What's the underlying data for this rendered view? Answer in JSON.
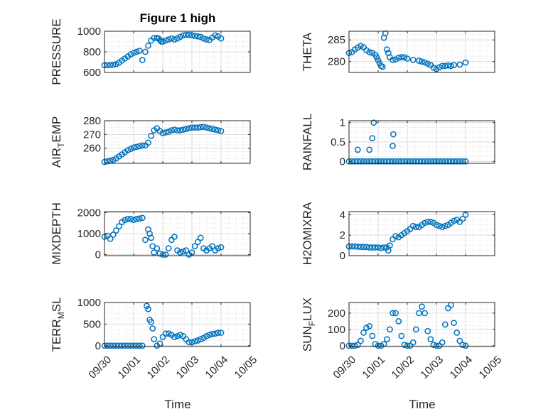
{
  "figure": {
    "title": "Figure 1 high",
    "xlabel": "Time",
    "marker_color": "#0072BD",
    "grid_color": "#DCDCDC",
    "axis_color": "#262626",
    "x_tick_labels": [
      "09/30",
      "10/01",
      "10/02",
      "10/03",
      "10/04",
      "10/05"
    ]
  },
  "chart_data": [
    {
      "type": "scatter",
      "ylabel": "PRESSURE",
      "xlim": [
        0,
        5
      ],
      "ylim": [
        600,
        1000
      ],
      "yticks": [
        600,
        800,
        1000
      ],
      "x_tick_labels_visible": false,
      "grid": true,
      "x": [
        0.0,
        0.1,
        0.2,
        0.3,
        0.4,
        0.5,
        0.6,
        0.7,
        0.8,
        0.9,
        1.0,
        1.1,
        1.2,
        1.3,
        1.4,
        1.5,
        1.6,
        1.7,
        1.8,
        1.85,
        1.9,
        1.95,
        2.0,
        2.1,
        2.2,
        2.3,
        2.4,
        2.5,
        2.6,
        2.7,
        2.8,
        2.9,
        3.0,
        3.1,
        3.2,
        3.3,
        3.4,
        3.5,
        3.6,
        3.7,
        3.8,
        3.9,
        4.0
      ],
      "y": [
        670,
        670,
        672,
        675,
        680,
        695,
        715,
        735,
        755,
        775,
        790,
        800,
        810,
        720,
        800,
        860,
        910,
        935,
        935,
        930,
        915,
        900,
        900,
        910,
        920,
        930,
        920,
        930,
        945,
        960,
        965,
        965,
        960,
        955,
        950,
        945,
        930,
        920,
        915,
        940,
        960,
        950,
        930
      ]
    },
    {
      "type": "scatter",
      "ylabel": "THETA",
      "xlim": [
        0,
        5
      ],
      "ylim": [
        277.5,
        287
      ],
      "yticks": [
        280,
        285
      ],
      "x_tick_labels_visible": false,
      "grid": true,
      "x": [
        0.0,
        0.1,
        0.2,
        0.3,
        0.4,
        0.5,
        0.6,
        0.7,
        0.8,
        0.9,
        0.95,
        1.0,
        1.05,
        1.1,
        1.15,
        1.2,
        1.25,
        1.3,
        1.35,
        1.4,
        1.5,
        1.6,
        1.7,
        1.8,
        1.9,
        2.0,
        2.2,
        2.4,
        2.5,
        2.6,
        2.7,
        2.8,
        2.9,
        3.0,
        3.1,
        3.2,
        3.3,
        3.4,
        3.5,
        3.6,
        3.8,
        4.0
      ],
      "y": [
        282,
        282.2,
        282.8,
        283.2,
        283.6,
        283.3,
        282.6,
        282.2,
        282,
        281.6,
        281,
        280.3,
        279.6,
        279,
        278.8,
        285.5,
        286.5,
        282.8,
        282,
        281,
        280.4,
        280.5,
        280.9,
        281,
        281,
        280.7,
        280.4,
        280.2,
        280,
        279.8,
        279.5,
        279.2,
        278.6,
        278.3,
        278.7,
        279,
        279,
        279.1,
        279,
        279.2,
        279.3,
        279.8
      ]
    },
    {
      "type": "scatter",
      "ylabel": "AIR_TEMP",
      "xlim": [
        0,
        5
      ],
      "ylim": [
        249,
        280
      ],
      "yticks": [
        260,
        270,
        280
      ],
      "x_tick_labels_visible": false,
      "grid": true,
      "x": [
        0.0,
        0.1,
        0.2,
        0.3,
        0.4,
        0.5,
        0.6,
        0.7,
        0.8,
        0.9,
        1.0,
        1.1,
        1.2,
        1.3,
        1.4,
        1.5,
        1.6,
        1.7,
        1.8,
        1.9,
        2.0,
        2.1,
        2.2,
        2.3,
        2.4,
        2.5,
        2.6,
        2.7,
        2.8,
        2.9,
        3.0,
        3.1,
        3.2,
        3.3,
        3.4,
        3.5,
        3.6,
        3.7,
        3.8,
        3.9,
        4.0
      ],
      "y": [
        250,
        250.5,
        251,
        251.5,
        252.5,
        254,
        255.5,
        257,
        258.5,
        259.5,
        260.5,
        261,
        261.5,
        262,
        262,
        264,
        269,
        273,
        274.5,
        272.5,
        271,
        271.5,
        272,
        273,
        273.5,
        273,
        273,
        273.5,
        274,
        274.5,
        275,
        275,
        275,
        275.3,
        275.5,
        275,
        274.5,
        274,
        273.5,
        273,
        272.5
      ]
    },
    {
      "type": "scatter",
      "ylabel": "RAINFALL",
      "xlim": [
        0,
        5
      ],
      "ylim": [
        -0.05,
        1.05
      ],
      "yticks": [
        0,
        0.5,
        1
      ],
      "x_tick_labels_visible": false,
      "grid": true,
      "x": [
        0.0,
        0.1,
        0.2,
        0.3,
        0.4,
        0.5,
        0.6,
        0.7,
        0.8,
        0.9,
        1.0,
        1.1,
        1.2,
        1.3,
        1.4,
        1.5,
        1.6,
        1.7,
        1.8,
        1.9,
        2.0,
        2.1,
        2.2,
        2.3,
        2.4,
        2.5,
        2.6,
        2.7,
        2.8,
        2.9,
        3.0,
        3.1,
        3.2,
        3.3,
        3.4,
        3.5,
        3.6,
        3.7,
        3.8,
        3.9,
        4.0,
        0.3,
        0.7,
        0.8,
        0.85,
        1.5,
        1.52
      ],
      "y": [
        0,
        0,
        0,
        0,
        0,
        0,
        0,
        0,
        0,
        0,
        0,
        0,
        0,
        0,
        0,
        0,
        0,
        0,
        0,
        0,
        0,
        0,
        0,
        0,
        0,
        0,
        0,
        0,
        0,
        0,
        0,
        0,
        0,
        0,
        0,
        0,
        0,
        0,
        0,
        0,
        0,
        0.3,
        0.3,
        0.6,
        1.0,
        0.4,
        0.7
      ]
    },
    {
      "type": "scatter",
      "ylabel": "MIXDEPTH",
      "xlim": [
        0,
        5
      ],
      "ylim": [
        -50,
        2050
      ],
      "yticks": [
        0,
        1000,
        2000
      ],
      "x_tick_labels_visible": false,
      "grid": true,
      "x": [
        0.0,
        0.1,
        0.2,
        0.3,
        0.4,
        0.5,
        0.6,
        0.7,
        0.8,
        0.9,
        1.0,
        1.1,
        1.2,
        1.3,
        1.4,
        1.5,
        1.55,
        1.6,
        1.65,
        1.7,
        1.8,
        1.9,
        2.0,
        2.1,
        2.2,
        2.3,
        2.4,
        2.5,
        2.6,
        2.7,
        2.8,
        2.9,
        3.0,
        3.1,
        3.2,
        3.3,
        3.4,
        3.5,
        3.6,
        3.7,
        3.8,
        3.9,
        4.0
      ],
      "y": [
        850,
        900,
        750,
        950,
        1150,
        1350,
        1550,
        1650,
        1700,
        1700,
        1650,
        1700,
        1720,
        1750,
        700,
        1200,
        1000,
        800,
        400,
        100,
        300,
        50,
        0,
        0,
        300,
        700,
        850,
        200,
        100,
        150,
        200,
        0,
        100,
        400,
        600,
        800,
        300,
        200,
        300,
        400,
        200,
        300,
        350
      ]
    },
    {
      "type": "scatter",
      "ylabel": "H2OMIXRA",
      "xlim": [
        0,
        5
      ],
      "ylim": [
        0,
        4.3
      ],
      "yticks": [
        0,
        2,
        4
      ],
      "x_tick_labels_visible": false,
      "grid": true,
      "x": [
        0.0,
        0.1,
        0.2,
        0.3,
        0.4,
        0.5,
        0.6,
        0.7,
        0.8,
        0.9,
        1.0,
        1.1,
        1.2,
        1.3,
        1.35,
        1.4,
        1.5,
        1.6,
        1.7,
        1.8,
        1.9,
        2.0,
        2.1,
        2.2,
        2.3,
        2.4,
        2.5,
        2.6,
        2.7,
        2.8,
        2.9,
        3.0,
        3.1,
        3.2,
        3.3,
        3.4,
        3.5,
        3.6,
        3.7,
        3.8,
        3.9,
        4.0
      ],
      "y": [
        0.9,
        0.9,
        0.9,
        0.88,
        0.85,
        0.85,
        0.85,
        0.8,
        0.8,
        0.8,
        0.8,
        0.75,
        0.8,
        0.8,
        0.5,
        1.0,
        1.6,
        1.9,
        1.8,
        2.0,
        2.2,
        2.4,
        2.6,
        2.9,
        2.8,
        2.8,
        3.0,
        3.2,
        3.3,
        3.3,
        3.2,
        3.0,
        2.9,
        2.8,
        2.9,
        3.0,
        3.2,
        3.4,
        3.5,
        3.3,
        3.6,
        4.0
      ]
    },
    {
      "type": "scatter",
      "ylabel": "TERR_MSL",
      "xlim": [
        0,
        5
      ],
      "ylim": [
        -20,
        1000
      ],
      "yticks": [
        0,
        500,
        1000
      ],
      "x_tick_labels_visible": true,
      "grid": true,
      "x": [
        0.0,
        0.1,
        0.2,
        0.3,
        0.4,
        0.5,
        0.6,
        0.7,
        0.8,
        0.9,
        1.0,
        1.1,
        1.2,
        1.3,
        1.45,
        1.5,
        1.55,
        1.6,
        1.65,
        1.7,
        1.8,
        1.9,
        2.0,
        2.1,
        2.2,
        2.3,
        2.4,
        2.5,
        2.6,
        2.7,
        2.8,
        2.9,
        3.0,
        3.1,
        3.2,
        3.3,
        3.4,
        3.5,
        3.6,
        3.7,
        3.8,
        3.9,
        4.0
      ],
      "y": [
        0,
        0,
        0,
        0,
        0,
        0,
        0,
        0,
        0,
        0,
        0,
        0,
        0,
        0,
        920,
        850,
        600,
        550,
        400,
        150,
        0,
        50,
        200,
        280,
        280,
        250,
        200,
        220,
        250,
        220,
        150,
        80,
        80,
        100,
        120,
        150,
        180,
        220,
        250,
        270,
        280,
        300,
        300
      ]
    },
    {
      "type": "scatter",
      "ylabel": "SUN_FLUX",
      "xlim": [
        0,
        5
      ],
      "ylim": [
        -5,
        265
      ],
      "yticks": [
        0,
        100,
        200
      ],
      "x_tick_labels_visible": true,
      "grid": true,
      "x": [
        0.0,
        0.1,
        0.2,
        0.3,
        0.4,
        0.5,
        0.6,
        0.7,
        0.8,
        0.9,
        1.0,
        1.1,
        1.2,
        1.3,
        1.4,
        1.5,
        1.6,
        1.7,
        1.8,
        1.9,
        2.0,
        2.1,
        2.2,
        2.3,
        2.4,
        2.5,
        2.6,
        2.7,
        2.8,
        2.9,
        3.0,
        3.1,
        3.2,
        3.3,
        3.4,
        3.5,
        3.6,
        3.7,
        3.8,
        3.9,
        4.0
      ],
      "y": [
        0,
        0,
        0,
        5,
        30,
        80,
        110,
        120,
        60,
        10,
        0,
        0,
        10,
        40,
        100,
        200,
        200,
        150,
        60,
        5,
        0,
        0,
        20,
        100,
        200,
        240,
        200,
        90,
        40,
        5,
        0,
        0,
        20,
        130,
        230,
        250,
        140,
        80,
        30,
        5,
        0
      ]
    }
  ]
}
